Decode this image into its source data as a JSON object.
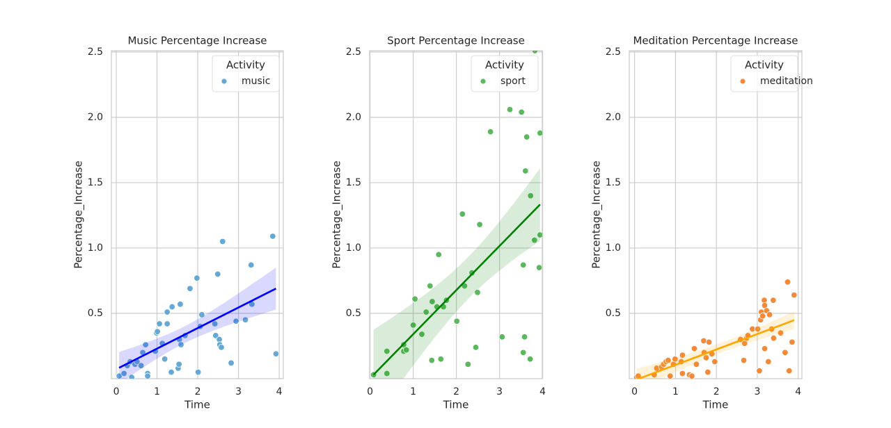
{
  "chart_data": [
    {
      "type": "scatter",
      "title": "Music Percentage Increase",
      "x_label": "Time",
      "y_label": "Percentage_Increase",
      "legend_title": "Activity",
      "legend": "upper right",
      "grid": true,
      "regression": true,
      "line_color": "#0000ff",
      "xlim": [
        -0.12,
        4.1
      ],
      "ylim": [
        0,
        2.51
      ],
      "xticks": [
        0,
        1,
        2,
        3,
        4
      ],
      "yticks": [
        0.5,
        {
          "value": 1,
          "label": "1.0"
        },
        1.5,
        {
          "value": 2,
          "label": "2.0"
        },
        2.5
      ],
      "series": [
        {
          "name": "music",
          "color": "#64a9d6",
          "x": [
            0.07,
            0.19,
            0.27,
            0.34,
            0.38,
            0.46,
            0.51,
            0.61,
            0.65,
            0.72,
            0.77,
            0.77,
            0.96,
            0.99,
            1.01,
            1.06,
            1.13,
            1.19,
            1.25,
            1.25,
            1.37,
            1.35,
            1.52,
            1.54,
            1.55,
            1.57,
            1.59,
            1.69,
            1.81,
            1.98,
            2.01,
            2.06,
            2.1,
            2.42,
            2.44,
            2.49,
            2.53,
            2.54,
            2.58,
            2.61,
            2.82,
            2.94,
            3.17,
            3.31,
            3.33,
            3.84,
            3.92
          ],
          "values": [
            0.02,
            0.04,
            0.1,
            0.13,
            0.01,
            0.11,
            0.13,
            0.1,
            0.2,
            0.26,
            0.04,
            0.02,
            0.21,
            0.35,
            0.36,
            0.42,
            0.27,
            0.15,
            0.51,
            0.42,
            0.55,
            0.05,
            0.08,
            0.11,
            0.3,
            0.57,
            0.26,
            0.33,
            0.69,
            0.77,
            0.05,
            0.4,
            0.49,
            0.42,
            0.33,
            0.8,
            0.3,
            0.26,
            0.24,
            1.05,
            0.12,
            0.44,
            0.45,
            0.87,
            0.57,
            1.09,
            0.19
          ]
        }
      ]
    },
    {
      "type": "scatter",
      "title": "Sport Percentage Increase",
      "x_label": "Time",
      "y_label": "Percentage_Increase",
      "legend_title": "Activity",
      "legend": "upper right",
      "grid": true,
      "regression": true,
      "line_color": "#008000",
      "xlim": [
        -0.01,
        3.99
      ],
      "ylim": [
        0,
        2.51
      ],
      "xticks": [
        0,
        1,
        2,
        3,
        4
      ],
      "yticks": [
        0.5,
        {
          "value": 1,
          "label": "1.0"
        },
        1.5,
        {
          "value": 2,
          "label": "2.0"
        },
        2.5
      ],
      "series": [
        {
          "name": "sport",
          "color": "#5cb85c",
          "x": [
            0.08,
            0.39,
            0.39,
            0.78,
            0.78,
            0.84,
            1.0,
            1.04,
            1.2,
            1.3,
            1.39,
            1.43,
            1.44,
            1.55,
            1.59,
            1.64,
            1.7,
            1.77,
            2.01,
            2.14,
            2.19,
            2.27,
            2.36,
            2.45,
            2.49,
            2.54,
            2.79,
            3.06,
            3.24,
            3.51,
            3.55,
            3.55,
            3.58,
            3.6,
            3.63,
            3.71,
            3.72,
            3.81,
            3.82,
            3.94,
            3.94,
            3.92
          ],
          "values": [
            0.03,
            0.21,
            0.04,
            0.26,
            0.21,
            0.22,
            0.41,
            0.61,
            0.34,
            0.51,
            0.71,
            0.14,
            0.59,
            0.55,
            0.95,
            0.15,
            0.55,
            0.6,
            0.44,
            1.26,
            0.71,
            0.11,
            0.81,
            0.24,
            0.66,
            1.18,
            1.89,
            0.32,
            2.06,
            2.04,
            0.87,
            0.2,
            0.32,
            1.59,
            1.85,
            0.15,
            1.4,
            1.06,
            2.51,
            1.88,
            1.1,
            0.85
          ]
        }
      ]
    },
    {
      "type": "scatter",
      "title": "Meditation Percentage Increase",
      "x_label": "Time",
      "y_label": "Percentage_Increase",
      "legend_title": "Activity",
      "legend": "upper right",
      "grid": true,
      "regression": true,
      "line_color": "#ffa500",
      "xlim": [
        -0.13,
        4.09
      ],
      "ylim": [
        0,
        2.51
      ],
      "xticks": [
        0,
        1,
        2,
        3,
        4
      ],
      "yticks": [
        0.5,
        {
          "value": 1,
          "label": "1.0"
        },
        1.5,
        {
          "value": 2,
          "label": "2.0"
        },
        2.5
      ],
      "series": [
        {
          "name": "meditation",
          "color": "#f28a3a",
          "x": [
            0.05,
            0.09,
            0.48,
            0.54,
            0.66,
            0.71,
            0.77,
            0.82,
            0.87,
            0.95,
            0.99,
            1.14,
            1.17,
            1.17,
            1.34,
            1.4,
            1.46,
            1.51,
            1.69,
            1.7,
            1.75,
            1.79,
            1.82,
            1.89,
            1.96,
            2.59,
            2.67,
            2.69,
            2.74,
            2.77,
            2.88,
            3.01,
            3.05,
            3.08,
            3.1,
            3.13,
            3.17,
            3.18,
            3.18,
            3.23,
            3.27,
            3.3,
            3.35,
            3.39,
            3.4,
            3.57,
            3.68,
            3.74,
            3.78,
            3.85,
            3.9
          ],
          "values": [
            0.01,
            0.02,
            0.03,
            0.08,
            0.09,
            0.11,
            0.13,
            0.14,
            0.02,
            0.11,
            0.15,
            0.13,
            0.18,
            0.04,
            0.03,
            0.02,
            0.23,
            0.11,
            0.29,
            0.2,
            0.16,
            0.05,
            0.28,
            0.19,
            0.13,
            0.3,
            0.14,
            0.27,
            0.31,
            0.33,
            0.38,
            0.38,
            0.06,
            0.45,
            0.51,
            0.48,
            0.6,
            0.56,
            0.23,
            0.52,
            0.13,
            0.49,
            0.38,
            0.6,
            0.31,
            0.35,
            0.2,
            0.74,
            0.06,
            0.28,
            0.64
          ]
        }
      ]
    }
  ]
}
